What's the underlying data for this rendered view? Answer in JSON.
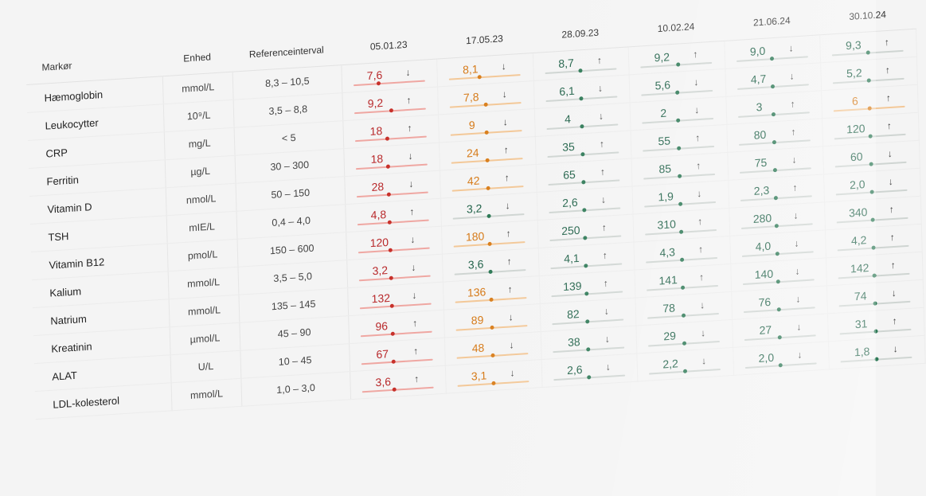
{
  "table": {
    "headers": {
      "marker": "Markør",
      "unit": "Enhed",
      "reference": "Referenceinterval",
      "dates": [
        "05.01.23",
        "17.05.23",
        "28.09.23",
        "10.02.24",
        "21.06.24",
        "30.10.24"
      ]
    },
    "colors": {
      "red": "#b8282a",
      "orange": "#d67a18",
      "green": "#22634a"
    },
    "rows": [
      {
        "marker": "Hæmoglobin",
        "unit": "mmol/L",
        "ref": "8,3 – 10,5",
        "values": [
          {
            "v": "7,6",
            "dir": "↓",
            "s": "red",
            "p": 0.35
          },
          {
            "v": "8,1",
            "dir": "↓",
            "s": "orange",
            "p": 0.42
          },
          {
            "v": "8,7",
            "dir": "↑",
            "s": "green",
            "p": 0.5
          },
          {
            "v": "9,2",
            "dir": "↑",
            "s": "green",
            "p": 0.52
          },
          {
            "v": "9,0",
            "dir": "↓",
            "s": "green",
            "p": 0.5
          },
          {
            "v": "9,3",
            "dir": "↑",
            "s": "green",
            "p": 0.5
          }
        ]
      },
      {
        "marker": "Leukocytter",
        "unit": "10⁹/L",
        "ref": "3,5 – 8,8",
        "values": [
          {
            "v": "9,2",
            "dir": "↑",
            "s": "red",
            "p": 0.52
          },
          {
            "v": "7,8",
            "dir": "↓",
            "s": "orange",
            "p": 0.5
          },
          {
            "v": "6,1",
            "dir": "↓",
            "s": "green",
            "p": 0.5
          },
          {
            "v": "5,6",
            "dir": "↓",
            "s": "green",
            "p": 0.5
          },
          {
            "v": "4,7",
            "dir": "↓",
            "s": "green",
            "p": 0.5
          },
          {
            "v": "5,2",
            "dir": "↑",
            "s": "green",
            "p": 0.5
          }
        ]
      },
      {
        "marker": "CRP",
        "unit": "mg/L",
        "ref": "< 5",
        "values": [
          {
            "v": "18",
            "dir": "↑",
            "s": "red",
            "p": 0.45
          },
          {
            "v": "9",
            "dir": "↓",
            "s": "orange",
            "p": 0.5
          },
          {
            "v": "4",
            "dir": "↓",
            "s": "green",
            "p": 0.5
          },
          {
            "v": "2",
            "dir": "↓",
            "s": "green",
            "p": 0.5
          },
          {
            "v": "3",
            "dir": "↑",
            "s": "green",
            "p": 0.5
          },
          {
            "v": "6",
            "dir": "↑",
            "s": "orange",
            "p": 0.5
          }
        ]
      },
      {
        "marker": "Ferritin",
        "unit": "µg/L",
        "ref": "30 – 300",
        "values": [
          {
            "v": "18",
            "dir": "↓",
            "s": "red",
            "p": 0.45
          },
          {
            "v": "24",
            "dir": "↑",
            "s": "orange",
            "p": 0.5
          },
          {
            "v": "35",
            "dir": "↑",
            "s": "green",
            "p": 0.5
          },
          {
            "v": "55",
            "dir": "↑",
            "s": "green",
            "p": 0.5
          },
          {
            "v": "80",
            "dir": "↑",
            "s": "green",
            "p": 0.5
          },
          {
            "v": "120",
            "dir": "↑",
            "s": "green",
            "p": 0.5
          }
        ]
      },
      {
        "marker": "Vitamin D",
        "unit": "nmol/L",
        "ref": "50 – 150",
        "values": [
          {
            "v": "28",
            "dir": "↓",
            "s": "red",
            "p": 0.45
          },
          {
            "v": "42",
            "dir": "↑",
            "s": "orange",
            "p": 0.5
          },
          {
            "v": "65",
            "dir": "↑",
            "s": "green",
            "p": 0.5
          },
          {
            "v": "85",
            "dir": "↑",
            "s": "green",
            "p": 0.5
          },
          {
            "v": "75",
            "dir": "↓",
            "s": "green",
            "p": 0.5
          },
          {
            "v": "60",
            "dir": "↓",
            "s": "green",
            "p": 0.5
          }
        ]
      },
      {
        "marker": "TSH",
        "unit": "mIE/L",
        "ref": "0,4 – 4,0",
        "values": [
          {
            "v": "4,8",
            "dir": "↑",
            "s": "red",
            "p": 0.45
          },
          {
            "v": "3,2",
            "dir": "↓",
            "s": "green",
            "p": 0.5
          },
          {
            "v": "2,6",
            "dir": "↓",
            "s": "green",
            "p": 0.5
          },
          {
            "v": "1,9",
            "dir": "↓",
            "s": "green",
            "p": 0.5
          },
          {
            "v": "2,3",
            "dir": "↑",
            "s": "green",
            "p": 0.5
          },
          {
            "v": "2,0",
            "dir": "↓",
            "s": "green",
            "p": 0.5
          }
        ]
      },
      {
        "marker": "Vitamin B12",
        "unit": "pmol/L",
        "ref": "150 – 600",
        "values": [
          {
            "v": "120",
            "dir": "↓",
            "s": "red",
            "p": 0.45
          },
          {
            "v": "180",
            "dir": "↑",
            "s": "orange",
            "p": 0.5
          },
          {
            "v": "250",
            "dir": "↑",
            "s": "green",
            "p": 0.5
          },
          {
            "v": "310",
            "dir": "↑",
            "s": "green",
            "p": 0.5
          },
          {
            "v": "280",
            "dir": "↓",
            "s": "green",
            "p": 0.5
          },
          {
            "v": "340",
            "dir": "↑",
            "s": "green",
            "p": 0.5
          }
        ]
      },
      {
        "marker": "Kalium",
        "unit": "mmol/L",
        "ref": "3,5 – 5,0",
        "values": [
          {
            "v": "3,2",
            "dir": "↓",
            "s": "red",
            "p": 0.45
          },
          {
            "v": "3,6",
            "dir": "↑",
            "s": "green",
            "p": 0.5
          },
          {
            "v": "4,1",
            "dir": "↑",
            "s": "green",
            "p": 0.5
          },
          {
            "v": "4,3",
            "dir": "↑",
            "s": "green",
            "p": 0.5
          },
          {
            "v": "4,0",
            "dir": "↓",
            "s": "green",
            "p": 0.5
          },
          {
            "v": "4,2",
            "dir": "↑",
            "s": "green",
            "p": 0.5
          }
        ]
      },
      {
        "marker": "Natrium",
        "unit": "mmol/L",
        "ref": "135 – 145",
        "values": [
          {
            "v": "132",
            "dir": "↓",
            "s": "red",
            "p": 0.45
          },
          {
            "v": "136",
            "dir": "↑",
            "s": "orange",
            "p": 0.5
          },
          {
            "v": "139",
            "dir": "↑",
            "s": "green",
            "p": 0.5
          },
          {
            "v": "141",
            "dir": "↑",
            "s": "green",
            "p": 0.5
          },
          {
            "v": "140",
            "dir": "↓",
            "s": "green",
            "p": 0.5
          },
          {
            "v": "142",
            "dir": "↑",
            "s": "green",
            "p": 0.5
          }
        ]
      },
      {
        "marker": "Kreatinin",
        "unit": "µmol/L",
        "ref": "45 – 90",
        "values": [
          {
            "v": "96",
            "dir": "↑",
            "s": "red",
            "p": 0.45
          },
          {
            "v": "89",
            "dir": "↓",
            "s": "orange",
            "p": 0.5
          },
          {
            "v": "82",
            "dir": "↓",
            "s": "green",
            "p": 0.5
          },
          {
            "v": "78",
            "dir": "↓",
            "s": "green",
            "p": 0.5
          },
          {
            "v": "76",
            "dir": "↓",
            "s": "green",
            "p": 0.5
          },
          {
            "v": "74",
            "dir": "↓",
            "s": "green",
            "p": 0.5
          }
        ]
      },
      {
        "marker": "ALAT",
        "unit": "U/L",
        "ref": "10 – 45",
        "values": [
          {
            "v": "67",
            "dir": "↑",
            "s": "red",
            "p": 0.45
          },
          {
            "v": "48",
            "dir": "↓",
            "s": "orange",
            "p": 0.5
          },
          {
            "v": "38",
            "dir": "↓",
            "s": "green",
            "p": 0.5
          },
          {
            "v": "29",
            "dir": "↓",
            "s": "green",
            "p": 0.5
          },
          {
            "v": "27",
            "dir": "↓",
            "s": "green",
            "p": 0.5
          },
          {
            "v": "31",
            "dir": "↑",
            "s": "green",
            "p": 0.5
          }
        ]
      },
      {
        "marker": "LDL-kolesterol",
        "unit": "mmol/L",
        "ref": "1,0 – 3,0",
        "values": [
          {
            "v": "3,6",
            "dir": "↑",
            "s": "red",
            "p": 0.45
          },
          {
            "v": "3,1",
            "dir": "↓",
            "s": "orange",
            "p": 0.5
          },
          {
            "v": "2,6",
            "dir": "↓",
            "s": "green",
            "p": 0.5
          },
          {
            "v": "2,2",
            "dir": "↓",
            "s": "green",
            "p": 0.5
          },
          {
            "v": "2,0",
            "dir": "↓",
            "s": "green",
            "p": 0.5
          },
          {
            "v": "1,8",
            "dir": "↓",
            "s": "green",
            "p": 0.5
          }
        ]
      }
    ]
  }
}
